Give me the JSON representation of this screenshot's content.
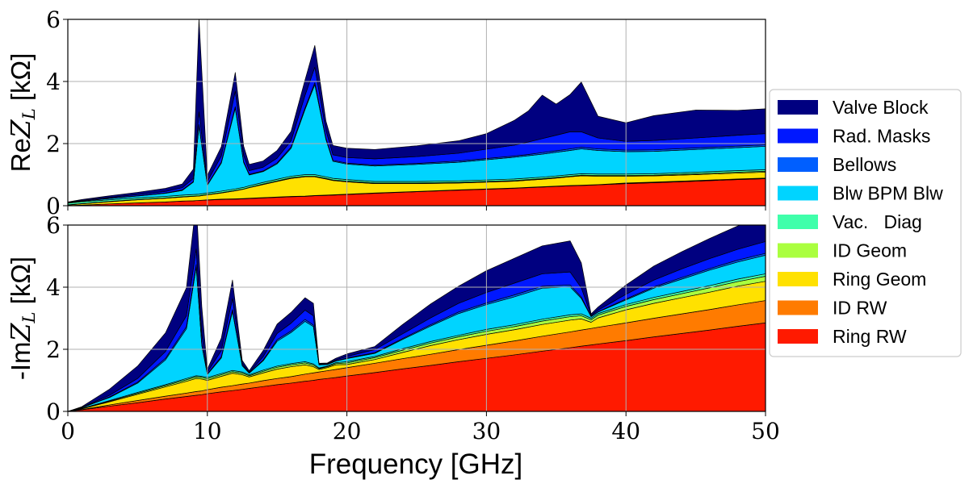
{
  "chart_data": [
    {
      "type": "area",
      "ylabel": "ReZ_L [kΩ]",
      "ylabel_prefix": "Re",
      "ylabel_sym": "Z",
      "ylabel_sub": "L",
      "ylabel_unit": " [kΩ]",
      "xlim": [
        0,
        50
      ],
      "ylim": [
        0,
        6
      ],
      "yticks": [
        "0",
        "2",
        "4",
        "6"
      ],
      "grid": true,
      "x": [
        0,
        1,
        3,
        5,
        7,
        8.2,
        9,
        9.4,
        10,
        11,
        12,
        12.6,
        13,
        14,
        15,
        16,
        17,
        17.7,
        18.5,
        19,
        20,
        22,
        25,
        28,
        30,
        32,
        33,
        34,
        35,
        36,
        36.8,
        38,
        40,
        42,
        45,
        48,
        50
      ],
      "series": [
        {
          "name": "Ring RW",
          "color": "#ff1a00",
          "values": [
            0,
            0.02,
            0.06,
            0.09,
            0.12,
            0.15,
            0.16,
            0.17,
            0.18,
            0.2,
            0.21,
            0.22,
            0.23,
            0.25,
            0.27,
            0.29,
            0.3,
            0.32,
            0.33,
            0.34,
            0.36,
            0.4,
            0.45,
            0.5,
            0.53,
            0.56,
            0.58,
            0.6,
            0.62,
            0.64,
            0.65,
            0.67,
            0.71,
            0.74,
            0.79,
            0.84,
            0.87
          ]
        },
        {
          "name": "ID RW",
          "color": "#ff7b00",
          "values": [
            0,
            0,
            0,
            0,
            0,
            0,
            0,
            0,
            0.01,
            0.01,
            0.01,
            0.01,
            0.01,
            0.01,
            0.01,
            0.01,
            0.01,
            0.01,
            0.01,
            0.01,
            0.01,
            0.01,
            0.01,
            0.01,
            0.01,
            0.01,
            0.01,
            0.01,
            0.01,
            0.01,
            0.01,
            0.01,
            0.02,
            0.02,
            0.02,
            0.02,
            0.02
          ]
        },
        {
          "name": "Ring Geom",
          "color": "#ffe100",
          "values": [
            0.02,
            0.04,
            0.07,
            0.1,
            0.12,
            0.13,
            0.14,
            0.14,
            0.16,
            0.2,
            0.26,
            0.3,
            0.34,
            0.42,
            0.5,
            0.58,
            0.62,
            0.6,
            0.52,
            0.46,
            0.4,
            0.3,
            0.25,
            0.22,
            0.22,
            0.22,
            0.23,
            0.24,
            0.26,
            0.28,
            0.3,
            0.27,
            0.22,
            0.2,
            0.19,
            0.19,
            0.19
          ]
        },
        {
          "name": "ID Geom",
          "color": "#aaff3f",
          "values": [
            0.01,
            0.01,
            0.01,
            0.01,
            0.01,
            0.01,
            0.01,
            0.01,
            0.01,
            0.01,
            0.01,
            0.01,
            0.01,
            0.02,
            0.02,
            0.02,
            0.02,
            0.02,
            0.02,
            0.02,
            0.02,
            0.02,
            0.02,
            0.02,
            0.02,
            0.02,
            0.02,
            0.02,
            0.02,
            0.02,
            0.02,
            0.02,
            0.02,
            0.02,
            0.03,
            0.03,
            0.03
          ]
        },
        {
          "name": "Vac.   Diag",
          "color": "#3fffaa",
          "values": [
            0.05,
            0.06,
            0.05,
            0.05,
            0.05,
            0.05,
            0.05,
            0.05,
            0.05,
            0.05,
            0.05,
            0.05,
            0.05,
            0.05,
            0.05,
            0.05,
            0.05,
            0.05,
            0.05,
            0.05,
            0.05,
            0.05,
            0.05,
            0.05,
            0.05,
            0.05,
            0.05,
            0.05,
            0.05,
            0.05,
            0.05,
            0.05,
            0.05,
            0.05,
            0.05,
            0.05,
            0.05
          ]
        },
        {
          "name": "Blw BPM Blw",
          "color": "#00d4ff",
          "values": [
            0.02,
            0.02,
            0.04,
            0.06,
            0.1,
            0.15,
            0.4,
            2.2,
            0.25,
            0.9,
            2.6,
            0.8,
            0.35,
            0.35,
            0.5,
            0.9,
            2.1,
            2.9,
            1.2,
            0.55,
            0.5,
            0.5,
            0.55,
            0.6,
            0.65,
            0.7,
            0.72,
            0.74,
            0.76,
            0.78,
            0.8,
            0.76,
            0.72,
            0.72,
            0.73,
            0.74,
            0.75
          ]
        },
        {
          "name": "Bellows",
          "color": "#005fff",
          "values": [
            0,
            0,
            0.01,
            0.01,
            0.01,
            0.02,
            0.02,
            0.05,
            0.02,
            0.03,
            0.05,
            0.03,
            0.02,
            0.02,
            0.03,
            0.04,
            0.05,
            0.06,
            0.04,
            0.03,
            0.03,
            0.03,
            0.03,
            0.04,
            0.04,
            0.04,
            0.04,
            0.05,
            0.05,
            0.05,
            0.05,
            0.05,
            0.05,
            0.05,
            0.05,
            0.05,
            0.05
          ]
        },
        {
          "name": "Rad. Masks",
          "color": "#0018ff",
          "values": [
            0.01,
            0.02,
            0.03,
            0.04,
            0.05,
            0.07,
            0.1,
            0.4,
            0.1,
            0.2,
            0.5,
            0.2,
            0.12,
            0.12,
            0.15,
            0.2,
            0.4,
            0.5,
            0.25,
            0.18,
            0.18,
            0.2,
            0.22,
            0.25,
            0.3,
            0.35,
            0.4,
            0.45,
            0.5,
            0.55,
            0.5,
            0.35,
            0.28,
            0.3,
            0.32,
            0.35,
            0.36
          ]
        },
        {
          "name": "Valve Block",
          "color": "#000080",
          "values": [
            0.01,
            0.03,
            0.05,
            0.07,
            0.1,
            0.12,
            0.3,
            3.0,
            0.2,
            0.3,
            0.6,
            0.3,
            0.2,
            0.2,
            0.25,
            0.3,
            0.5,
            0.7,
            0.3,
            0.3,
            0.3,
            0.3,
            0.35,
            0.4,
            0.5,
            0.8,
            1.0,
            1.4,
            1.0,
            1.2,
            1.6,
            0.7,
            0.6,
            0.8,
            0.9,
            0.8,
            0.8
          ]
        }
      ]
    },
    {
      "type": "area",
      "ylabel": "-ImZ_L [kΩ]",
      "ylabel_prefix": "-Im",
      "ylabel_sym": "Z",
      "ylabel_sub": "L",
      "ylabel_unit": " [kΩ]",
      "xlabel": "Frequency [GHz]",
      "xlim": [
        0,
        50
      ],
      "ylim": [
        0,
        6
      ],
      "xticks": [
        "0",
        "10",
        "20",
        "30",
        "40",
        "50"
      ],
      "yticks": [
        "0",
        "2",
        "4",
        "6"
      ],
      "grid": true,
      "x": [
        0,
        1,
        3,
        5,
        7,
        8.5,
        9.2,
        9.6,
        10,
        11,
        11.8,
        12.5,
        13,
        14,
        15,
        16,
        17,
        17.6,
        18,
        18.6,
        19.2,
        20,
        22,
        24,
        26,
        28,
        30,
        32,
        34,
        36,
        36.8,
        37.5,
        38,
        40,
        42,
        44,
        46,
        48,
        50
      ],
      "series": [
        {
          "name": "Ring RW",
          "color": "#ff1a00",
          "values": [
            0,
            0.05,
            0.17,
            0.28,
            0.4,
            0.48,
            0.52,
            0.54,
            0.57,
            0.63,
            0.67,
            0.71,
            0.74,
            0.8,
            0.86,
            0.91,
            0.97,
            1.0,
            1.03,
            1.06,
            1.09,
            1.14,
            1.25,
            1.37,
            1.48,
            1.6,
            1.71,
            1.82,
            1.94,
            2.05,
            2.1,
            2.14,
            2.17,
            2.28,
            2.4,
            2.51,
            2.62,
            2.74,
            2.85
          ]
        },
        {
          "name": "ID RW",
          "color": "#ff7b00",
          "values": [
            0,
            0.01,
            0.04,
            0.07,
            0.09,
            0.11,
            0.12,
            0.12,
            0.13,
            0.15,
            0.16,
            0.17,
            0.17,
            0.19,
            0.2,
            0.21,
            0.23,
            0.24,
            0.24,
            0.25,
            0.26,
            0.27,
            0.3,
            0.33,
            0.36,
            0.39,
            0.42,
            0.45,
            0.48,
            0.51,
            0.52,
            0.53,
            0.54,
            0.57,
            0.6,
            0.63,
            0.66,
            0.69,
            0.72
          ]
        },
        {
          "name": "Ring Geom",
          "color": "#ffe100",
          "values": [
            0,
            0.02,
            0.1,
            0.2,
            0.3,
            0.38,
            0.42,
            0.38,
            0.3,
            0.35,
            0.4,
            0.3,
            0.2,
            0.25,
            0.3,
            0.32,
            0.3,
            0.2,
            0.08,
            0.1,
            0.15,
            0.1,
            0.12,
            0.2,
            0.28,
            0.32,
            0.35,
            0.36,
            0.38,
            0.38,
            0.36,
            0.2,
            0.3,
            0.42,
            0.48,
            0.52,
            0.56,
            0.6,
            0.62
          ]
        },
        {
          "name": "ID Geom",
          "color": "#aaff3f",
          "values": [
            0,
            0.01,
            0.02,
            0.03,
            0.04,
            0.05,
            0.05,
            0.05,
            0.05,
            0.05,
            0.05,
            0.05,
            0.04,
            0.05,
            0.06,
            0.06,
            0.06,
            0.05,
            0.03,
            0.03,
            0.04,
            0.05,
            0.06,
            0.07,
            0.08,
            0.09,
            0.1,
            0.1,
            0.11,
            0.11,
            0.1,
            0.08,
            0.09,
            0.11,
            0.12,
            0.13,
            0.14,
            0.15,
            0.16
          ]
        },
        {
          "name": "Vac.   Diag",
          "color": "#3fffaa",
          "values": [
            0,
            0.01,
            0.02,
            0.03,
            0.03,
            0.04,
            0.04,
            0.04,
            0.04,
            0.04,
            0.04,
            0.04,
            0.03,
            0.04,
            0.04,
            0.04,
            0.04,
            0.04,
            0.02,
            0.02,
            0.03,
            0.04,
            0.04,
            0.05,
            0.05,
            0.05,
            0.06,
            0.06,
            0.06,
            0.06,
            0.06,
            0.05,
            0.05,
            0.06,
            0.07,
            0.07,
            0.07,
            0.08,
            0.08
          ]
        },
        {
          "name": "Blw BPM Blw",
          "color": "#00d4ff",
          "values": [
            0,
            0.02,
            0.1,
            0.3,
            0.8,
            1.6,
            3.5,
            1.0,
            0.1,
            0.5,
            1.9,
            0.2,
            0.05,
            0.3,
            0.8,
            1.0,
            1.3,
            1.2,
            0.1,
            0.05,
            0.05,
            0.1,
            0.1,
            0.3,
            0.5,
            0.7,
            0.8,
            0.9,
            1.0,
            0.9,
            0.5,
            0.05,
            0.05,
            0.15,
            0.3,
            0.4,
            0.5,
            0.55,
            0.6
          ]
        },
        {
          "name": "Bellows",
          "color": "#005fff",
          "values": [
            0,
            0,
            0.02,
            0.03,
            0.05,
            0.07,
            0.08,
            0.05,
            0.02,
            0.04,
            0.06,
            0.02,
            0.01,
            0.03,
            0.05,
            0.05,
            0.06,
            0.05,
            0.01,
            0.01,
            0.01,
            0.02,
            0.02,
            0.03,
            0.04,
            0.05,
            0.05,
            0.06,
            0.06,
            0.06,
            0.04,
            0.01,
            0.01,
            0.03,
            0.04,
            0.05,
            0.05,
            0.06,
            0.06
          ]
        },
        {
          "name": "Rad. Masks",
          "color": "#0018ff",
          "values": [
            0,
            0.01,
            0.05,
            0.12,
            0.22,
            0.35,
            0.5,
            0.3,
            0.05,
            0.2,
            0.35,
            0.05,
            0.02,
            0.1,
            0.2,
            0.25,
            0.3,
            0.3,
            0.02,
            0.02,
            0.03,
            0.05,
            0.1,
            0.15,
            0.22,
            0.28,
            0.34,
            0.38,
            0.4,
            0.42,
            0.3,
            0.03,
            0.05,
            0.15,
            0.22,
            0.28,
            0.32,
            0.35,
            0.38
          ]
        },
        {
          "name": "Valve Block",
          "color": "#000080",
          "values": [
            0,
            0.02,
            0.2,
            0.4,
            0.6,
            0.9,
            1.5,
            0.9,
            0.1,
            0.4,
            0.6,
            0.1,
            0.05,
            0.2,
            0.3,
            0.35,
            0.4,
            0.4,
            0.02,
            0.02,
            0.05,
            0.08,
            0.1,
            0.3,
            0.45,
            0.55,
            0.7,
            0.8,
            0.9,
            1.0,
            0.8,
            0.05,
            0.1,
            0.3,
            0.45,
            0.55,
            0.65,
            0.75,
            0.85
          ]
        }
      ]
    }
  ],
  "legend": {
    "placement": "right",
    "items": [
      {
        "label": "Valve Block",
        "color": "#000080"
      },
      {
        "label": "Rad. Masks",
        "color": "#0018ff"
      },
      {
        "label": "Bellows",
        "color": "#005fff"
      },
      {
        "label": "Blw BPM Blw",
        "color": "#00d4ff"
      },
      {
        "label": "Vac.   Diag",
        "color": "#3fffaa"
      },
      {
        "label": "ID Geom",
        "color": "#aaff3f"
      },
      {
        "label": "Ring Geom",
        "color": "#ffe100"
      },
      {
        "label": "ID RW",
        "color": "#ff7b00"
      },
      {
        "label": "Ring RW",
        "color": "#ff1a00"
      }
    ]
  }
}
